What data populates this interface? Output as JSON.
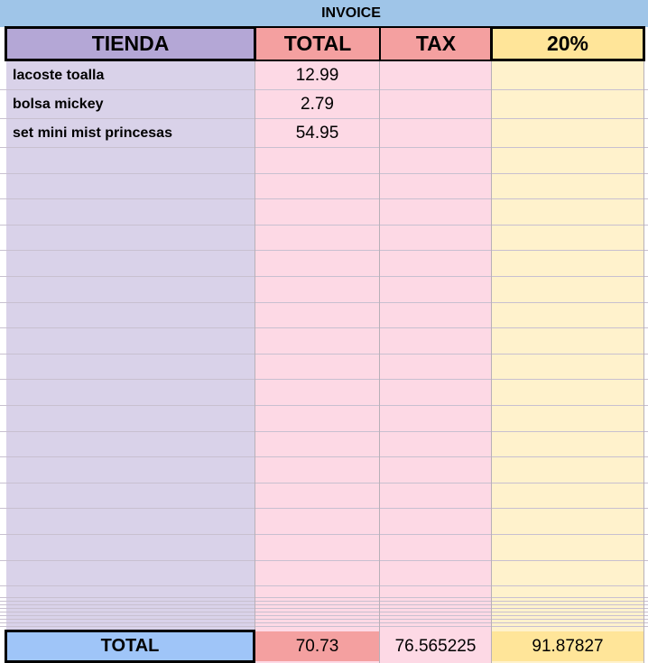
{
  "title": "INVOICE",
  "table": {
    "header": [
      "TIENDA",
      "TOTAL",
      "TAX",
      "20%"
    ],
    "rows": [
      [
        "lacoste toalla",
        12.99
      ],
      [
        "bolsa mickey",
        2.79
      ],
      [
        "set mini mist princesas",
        54.95
      ]
    ],
    "footer": [
      "TOTAL",
      70.73,
      76.565225,
      91.87827
    ]
  }
}
